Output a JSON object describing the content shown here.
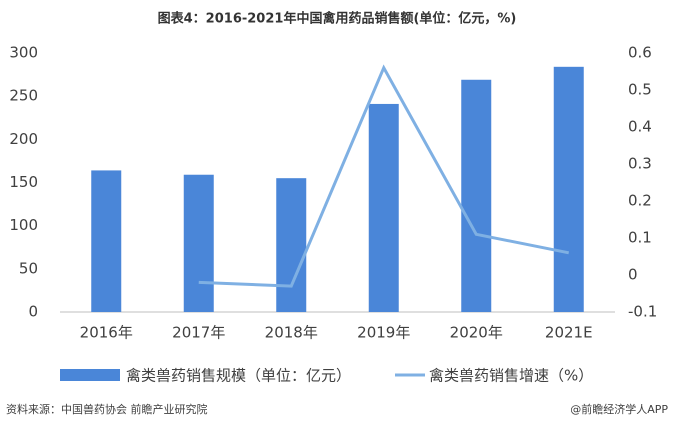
{
  "chart_data": {
    "type": "bar_line",
    "title": "图表4：2016-2021年中国禽用药品销售额(单位：亿元，%)",
    "categories": [
      "2016年",
      "2017年",
      "2018年",
      "2019年",
      "2020年",
      "2021E"
    ],
    "series": [
      {
        "name": "禽类兽药销售规模（单位：亿元）",
        "color": "#4a86d8",
        "type": "bar",
        "values": [
          164,
          159,
          155,
          241,
          269,
          284
        ]
      },
      {
        "name": "禽类兽药销售增速（%）",
        "color": "#7fb0e3",
        "type": "line",
        "axis": "y2",
        "values": [
          null,
          -0.02,
          -0.03,
          0.56,
          0.11,
          0.06
        ]
      }
    ],
    "ylim": [
      0,
      300
    ],
    "yticks": [
      0,
      50,
      100,
      150,
      200,
      250,
      300
    ],
    "y2lim": [
      -0.1,
      0.6
    ],
    "y2ticks": [
      -0.1,
      0,
      0.1,
      0.2,
      0.3,
      0.4,
      0.5,
      0.6
    ],
    "source": "资料来源：中国兽药协会 前瞻产业研究院",
    "credit": "@前瞻经济学人APP"
  }
}
